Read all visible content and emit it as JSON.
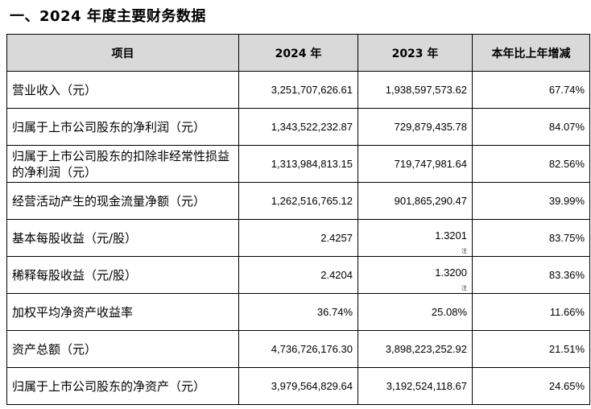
{
  "heading": "一、2024 年度主要财务数据",
  "columns": {
    "item": "项目",
    "y2024": "2024 年",
    "y2023": "2023 年",
    "change": "本年比上年增减"
  },
  "rows": [
    {
      "label": "营业收入（元）",
      "y2024": "3,251,707,626.61",
      "y2023": "1,938,597,573.62",
      "change": "67.74%"
    },
    {
      "label": "归属于上市公司股东的净利润（元）",
      "y2024": "1,343,522,232.87",
      "y2023": "729,879,435.78",
      "change": "84.07%"
    },
    {
      "label": "归属于上市公司股东的扣除非经常性损益的净利润（元）",
      "y2024": "1,313,984,813.15",
      "y2023": "719,747,981.64",
      "change": "82.56%"
    },
    {
      "label": "经营活动产生的现金流量净额（元）",
      "y2024": "1,262,516,765.12",
      "y2023": "901,865,290.47",
      "change": "39.99%"
    },
    {
      "label": "基本每股收益（元/股）",
      "y2024": "2.4257",
      "y2023": "1.3201",
      "y2023_note": "注",
      "change": "83.75%"
    },
    {
      "label": "稀释每股收益（元/股）",
      "y2024": "2.4204",
      "y2023": "1.3200",
      "y2023_note": "注",
      "change": "83.36%"
    },
    {
      "label": "加权平均净资产收益率",
      "y2024": "36.74%",
      "y2023": "25.08%",
      "change": "11.66%"
    },
    {
      "label": "资产总额（元）",
      "y2024": "4,736,726,176.30",
      "y2023": "3,898,223,252.92",
      "change": "21.51%"
    },
    {
      "label": "归属于上市公司股东的净资产（元）",
      "y2024": "3,979,564,829.64",
      "y2023": "3,192,524,118.67",
      "change": "24.65%"
    }
  ]
}
